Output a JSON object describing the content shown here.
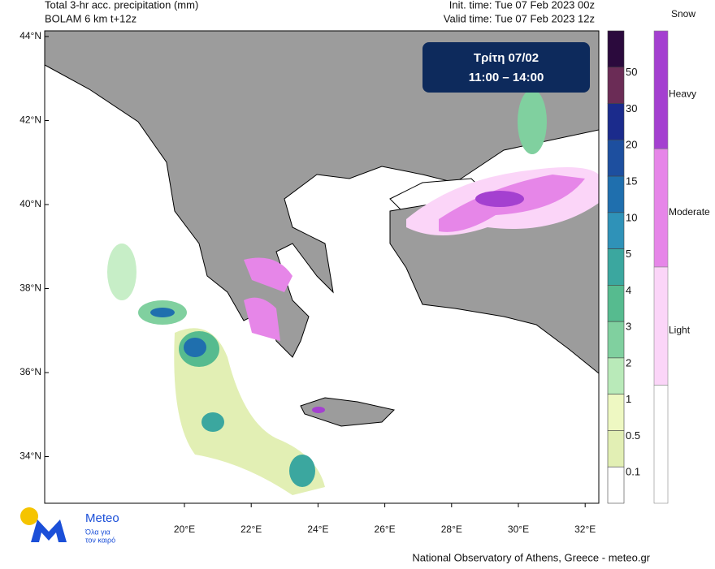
{
  "header": {
    "left": [
      "Total 3-hr acc. precipitation (mm)",
      "BOLAM 6 km t+12z"
    ],
    "right": [
      "Init. time: Tue 07 Feb 2023 00z",
      "Valid time: Tue 07 Feb 2023 12z"
    ]
  },
  "time_box": [
    "Τρίτη 07/02",
    "11:00 – 14:00"
  ],
  "map": {
    "lat_labels": [
      "44°N",
      "42°N",
      "40°N",
      "38°N",
      "36°N",
      "34°N"
    ],
    "lon_labels": [
      "20°E",
      "22°E",
      "24°E",
      "26°E",
      "28°E",
      "30°E",
      "32°E"
    ]
  },
  "precip_scale": {
    "labels": [
      "50",
      "30",
      "20",
      "15",
      "10",
      "5",
      "4",
      "3",
      "2",
      "1",
      "0.5",
      "0.1"
    ],
    "colors": [
      "#2b0a3d",
      "#6b2c56",
      "#1b2b8c",
      "#1d4f9f",
      "#1f6fae",
      "#2f92b8",
      "#3ba79f",
      "#56bb8f",
      "#80d09f",
      "#b9eab9",
      "#eef8c2",
      "#e2efb4",
      "#ffffff"
    ]
  },
  "snow_scale": {
    "title": "Snow",
    "labels": [
      "Heavy",
      "Moderate",
      "Light"
    ],
    "colors": [
      "#a440d0",
      "#e686e8",
      "#fbd5f8",
      "#ffffff"
    ]
  },
  "logo": {
    "name": "Meteo",
    "tagline": [
      "Όλα για",
      "τον καιρό"
    ]
  },
  "footer": "National Observatory of Athens, Greece - meteo.gr"
}
